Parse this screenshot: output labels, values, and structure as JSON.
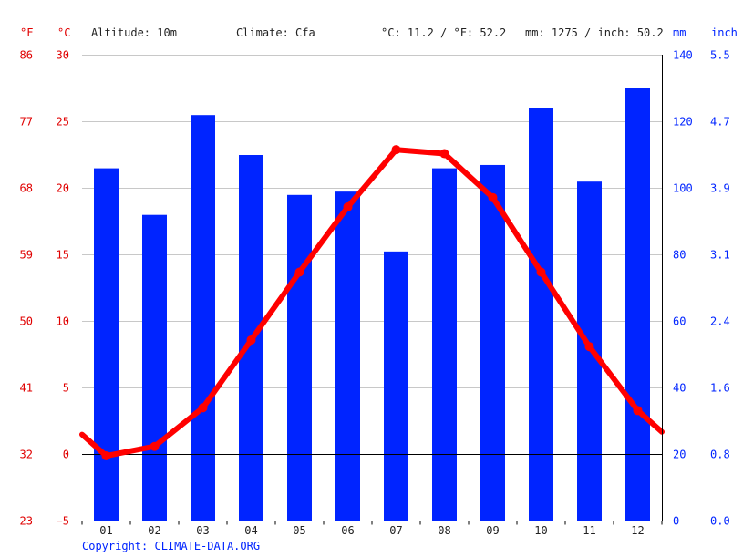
{
  "header": {
    "unit_f": "°F",
    "unit_c": "°C",
    "altitude": "Altitude: 10m",
    "climate": "Climate: Cfa",
    "temp_avg": "°C: 11.2 / °F: 52.2",
    "precip_avg": "mm: 1275 / inch: 50.2",
    "unit_mm": "mm",
    "unit_inch": "inch"
  },
  "axes": {
    "f_ticks": [
      "86",
      "77",
      "68",
      "59",
      "50",
      "41",
      "32",
      "23"
    ],
    "c_ticks": [
      "30",
      "25",
      "20",
      "15",
      "10",
      "5",
      "0",
      "−5"
    ],
    "mm_ticks": [
      "140",
      "120",
      "100",
      "80",
      "60",
      "40",
      "20",
      "0"
    ],
    "inch_ticks": [
      "5.5",
      "4.7",
      "3.9",
      "3.1",
      "2.4",
      "1.6",
      "0.8",
      "0.0"
    ]
  },
  "copyright": "Copyright: CLIMATE-DATA.ORG",
  "colors": {
    "precip_bar": "#0024ff",
    "temp_line": "#ff0000",
    "axis_red": "#e00000",
    "axis_blue": "#0024ff"
  },
  "chart_data": {
    "type": "bar",
    "categories": [
      "01",
      "02",
      "03",
      "04",
      "05",
      "06",
      "07",
      "08",
      "09",
      "10",
      "11",
      "12"
    ],
    "series": [
      {
        "kind": "bar",
        "axis": "mm",
        "values": [
          106,
          92,
          122,
          110,
          98,
          99,
          81,
          106,
          107,
          124,
          102,
          130
        ]
      },
      {
        "kind": "line",
        "axis": "celsius",
        "values": [
          -0.1,
          0.6,
          3.5,
          8.6,
          13.7,
          18.6,
          22.9,
          22.6,
          19.3,
          13.7,
          8.1,
          3.3
        ]
      }
    ],
    "line_edges": {
      "start": 1.5,
      "end": 1.7
    },
    "celsius_range": [
      -5,
      30
    ],
    "mm_range": [
      0,
      140
    ],
    "grid": true
  }
}
